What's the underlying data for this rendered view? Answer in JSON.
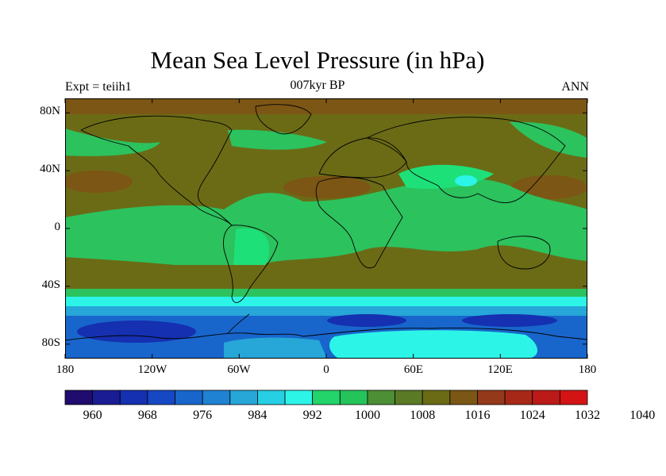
{
  "title": "Mean Sea Level Pressure (in hPa)",
  "subtitle": "007kyr BP",
  "left_label": "Expt = teiih1",
  "right_label": "ANN",
  "y_ticks": [
    "80N",
    "40N",
    "0",
    "40S",
    "80S"
  ],
  "x_ticks": [
    "180",
    "120W",
    "60W",
    "0",
    "60E",
    "120E",
    "180"
  ],
  "colorbar": {
    "colors": [
      "#1f0c6e",
      "#1a1c94",
      "#1530b0",
      "#1648c4",
      "#1866cc",
      "#1f82d2",
      "#26a7d8",
      "#26cfe3",
      "#2cf5e8",
      "#22d46a",
      "#25c45a",
      "#4c8f35",
      "#5a7a26",
      "#6b6b16",
      "#7c5614",
      "#94391a",
      "#a82818",
      "#bc1a18",
      "#d41414"
    ],
    "labels": [
      "960",
      "968",
      "976",
      "984",
      "992",
      "1000",
      "1008",
      "1016",
      "1024",
      "1032",
      "1040"
    ]
  },
  "map_colors": {
    "high": "#6b6b16",
    "mid": "#5a7a26",
    "low_green": "#2cc25e",
    "bright_green": "#1ee079",
    "cyan": "#2cf5e8",
    "teal": "#26a7d8",
    "blue": "#1866cc",
    "deep_blue": "#1530b0",
    "brown": "#7c5614",
    "coast": "#000000"
  }
}
